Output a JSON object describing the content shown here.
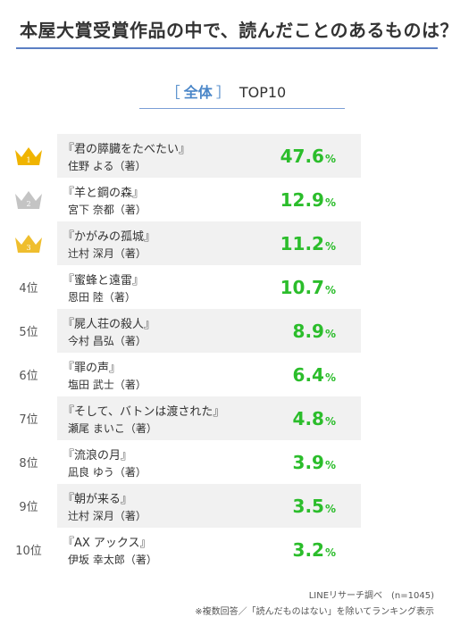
{
  "header": {
    "title": "本屋大賞受賞作品の中で、読んだことのあるものは？",
    "subtitle_open": "［",
    "subtitle_scope": "全体",
    "subtitle_close": "］",
    "subtitle_top": "TOP10"
  },
  "colors": {
    "gold": "#f0b400",
    "silver": "#c4c4c4",
    "bronze": "#efbe2e",
    "percent": "#2bbd2b",
    "accent": "#4a86c8"
  },
  "chart_data": {
    "type": "table",
    "title": "本屋大賞受賞作品の中で、読んだことのあるものは？",
    "unit": "%",
    "rows": [
      {
        "rank": "1",
        "rank_label": "",
        "crown": "gold-crown-icon",
        "book": "『君の膵臓をたべたい』",
        "author": "住野 よる（著）",
        "value": 47.6
      },
      {
        "rank": "2",
        "rank_label": "",
        "crown": "silver-crown-icon",
        "book": "『羊と鋼の森』",
        "author": "宮下 奈都（著）",
        "value": 12.9
      },
      {
        "rank": "3",
        "rank_label": "",
        "crown": "bronze-crown-icon",
        "book": "『かがみの孤城』",
        "author": "辻村 深月（著）",
        "value": 11.2
      },
      {
        "rank": "4",
        "rank_label": "4位",
        "crown": "",
        "book": "『蜜蜂と遠雷』",
        "author": "恩田 陸（著）",
        "value": 10.7
      },
      {
        "rank": "5",
        "rank_label": "5位",
        "crown": "",
        "book": "『屍人荘の殺人』",
        "author": "今村 昌弘（著）",
        "value": 8.9
      },
      {
        "rank": "6",
        "rank_label": "6位",
        "crown": "",
        "book": "『罪の声』",
        "author": "塩田 武士（著）",
        "value": 6.4
      },
      {
        "rank": "7",
        "rank_label": "7位",
        "crown": "",
        "book": "『そして、バトンは渡された』",
        "author": "瀬尾 まいこ（著）",
        "value": 4.8
      },
      {
        "rank": "8",
        "rank_label": "8位",
        "crown": "",
        "book": "『流浪の月』",
        "author": "凪良 ゆう（著）",
        "value": 3.9
      },
      {
        "rank": "9",
        "rank_label": "9位",
        "crown": "",
        "book": "『朝が来る』",
        "author": "辻村 深月（著）",
        "value": 3.5
      },
      {
        "rank": "10",
        "rank_label": "10位",
        "crown": "",
        "book": "『AX アックス』",
        "author": "伊坂 幸太郎（著）",
        "value": 3.2
      }
    ]
  },
  "footer": {
    "source": "LINEリサーチ調べ　(n=1045)",
    "note": "※複数回答／「読んだものはない」を除いてランキング表示"
  }
}
